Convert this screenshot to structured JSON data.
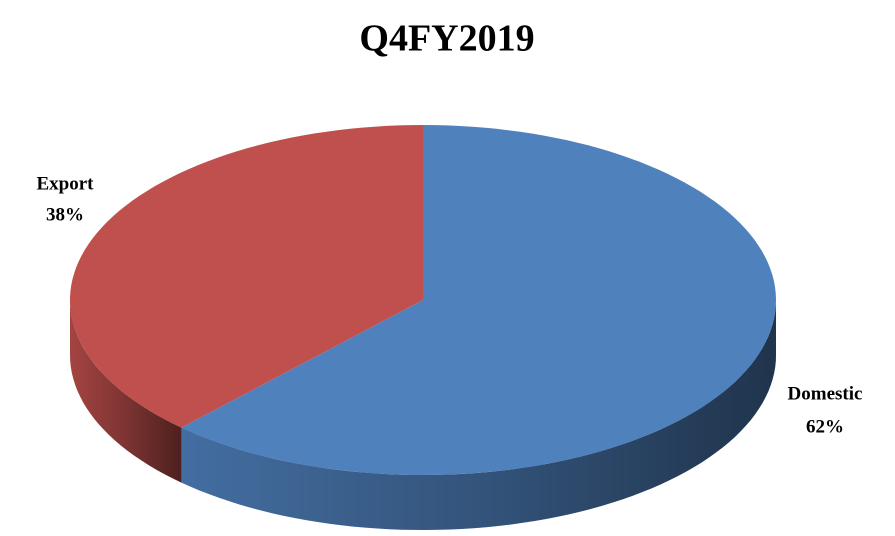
{
  "chart_data": {
    "type": "pie",
    "title": "Q4FY2019",
    "categories": [
      "Domestic",
      "Export"
    ],
    "values": [
      62,
      38
    ],
    "value_labels": [
      "62%",
      "38%"
    ],
    "colors": [
      "#4f81bd",
      "#c0504d"
    ]
  }
}
